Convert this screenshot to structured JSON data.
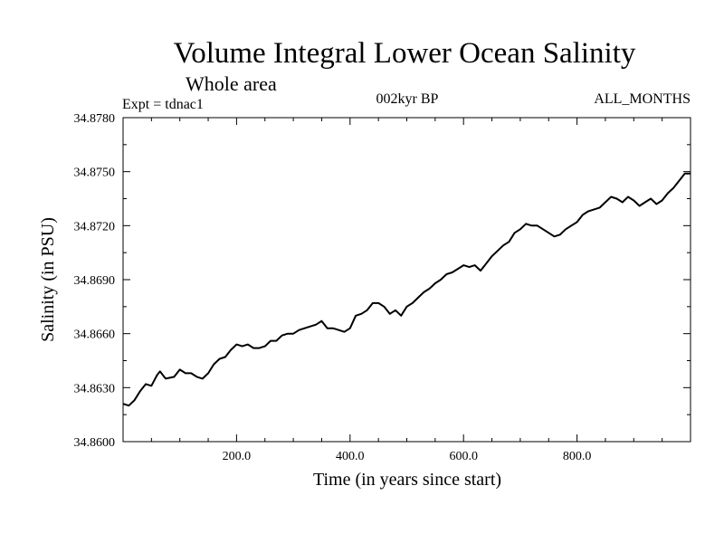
{
  "chart_data": {
    "type": "line",
    "title": "Volume Integral Lower Ocean Salinity",
    "subtitle": "Whole area",
    "experiment": "Expt = tdnac1",
    "period": "002kyr BP",
    "months": "ALL_MONTHS",
    "xlabel": "Time (in years since start)",
    "ylabel": "Salinity (in PSU)",
    "xlim": [
      0,
      1000
    ],
    "ylim": [
      34.86,
      34.878
    ],
    "x_ticks": [
      200,
      400,
      600,
      800
    ],
    "x_tick_labels": [
      "200.0",
      "400.0",
      "600.0",
      "800.0"
    ],
    "y_ticks": [
      34.86,
      34.863,
      34.866,
      34.869,
      34.872,
      34.875,
      34.878
    ],
    "y_tick_labels": [
      "34.8600",
      "34.8630",
      "34.8660",
      "34.8690",
      "34.8720",
      "34.8750",
      "34.8780"
    ],
    "grid": false,
    "series": [
      {
        "name": "Salinity",
        "color": "#000000",
        "x": [
          0,
          10,
          20,
          30,
          40,
          50,
          60,
          65,
          75,
          90,
          100,
          110,
          120,
          130,
          140,
          150,
          160,
          170,
          180,
          190,
          200,
          210,
          220,
          230,
          240,
          250,
          260,
          270,
          280,
          290,
          300,
          310,
          320,
          330,
          340,
          350,
          360,
          370,
          380,
          390,
          400,
          410,
          420,
          430,
          440,
          450,
          460,
          470,
          480,
          490,
          500,
          510,
          520,
          530,
          540,
          550,
          560,
          570,
          580,
          590,
          600,
          610,
          620,
          630,
          640,
          650,
          660,
          670,
          680,
          690,
          700,
          710,
          720,
          730,
          740,
          750,
          760,
          770,
          780,
          790,
          800,
          810,
          820,
          830,
          840,
          850,
          860,
          870,
          880,
          890,
          900,
          910,
          920,
          930,
          940,
          950,
          960,
          970,
          980,
          990,
          1000
        ],
        "y": [
          34.8621,
          34.862,
          34.8623,
          34.8628,
          34.8632,
          34.8631,
          34.8637,
          34.8639,
          34.8635,
          34.8636,
          34.864,
          34.8638,
          34.8638,
          34.8636,
          34.8635,
          34.8638,
          34.8643,
          34.8646,
          34.8647,
          34.8651,
          34.8654,
          34.8653,
          34.8654,
          34.8652,
          34.8652,
          34.8653,
          34.8656,
          34.8656,
          34.8659,
          34.866,
          34.866,
          34.8662,
          34.8663,
          34.8664,
          34.8665,
          34.8667,
          34.8663,
          34.8663,
          34.8662,
          34.8661,
          34.8663,
          34.867,
          34.8671,
          34.8673,
          34.8677,
          34.8677,
          34.8675,
          34.8671,
          34.8673,
          34.867,
          34.8675,
          34.8677,
          34.868,
          34.8683,
          34.8685,
          34.8688,
          34.869,
          34.8693,
          34.8694,
          34.8696,
          34.8698,
          34.8697,
          34.8698,
          34.8695,
          34.8699,
          34.8703,
          34.8706,
          34.8709,
          34.8711,
          34.8716,
          34.8718,
          34.8721,
          34.872,
          34.872,
          34.8718,
          34.8716,
          34.8714,
          34.8715,
          34.8718,
          34.872,
          34.8722,
          34.8726,
          34.8728,
          34.8729,
          34.873,
          34.8733,
          34.8736,
          34.8735,
          34.8733,
          34.8736,
          34.8734,
          34.8731,
          34.8733,
          34.8735,
          34.8732,
          34.8734,
          34.8738,
          34.8741,
          34.8745,
          34.8749,
          34.8749
        ]
      }
    ]
  }
}
